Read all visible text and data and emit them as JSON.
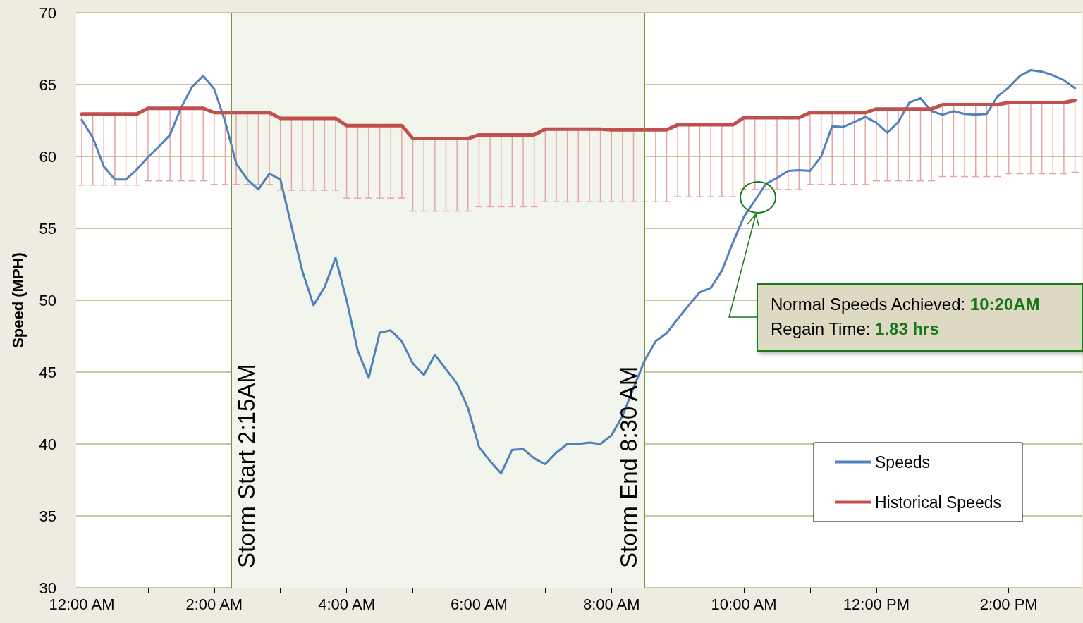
{
  "chart_data": {
    "type": "line",
    "ylabel": "Speed (MPH)",
    "x": [
      0,
      0.167,
      0.333,
      0.5,
      0.667,
      0.833,
      1,
      1.167,
      1.333,
      1.5,
      1.667,
      1.833,
      2,
      2.167,
      2.333,
      2.5,
      2.667,
      2.833,
      3,
      3.167,
      3.333,
      3.5,
      3.667,
      3.833,
      4,
      4.167,
      4.333,
      4.5,
      4.667,
      4.833,
      5,
      5.167,
      5.333,
      5.5,
      5.667,
      5.833,
      6,
      6.167,
      6.333,
      6.5,
      6.667,
      6.833,
      7,
      7.167,
      7.333,
      7.5,
      7.667,
      7.833,
      8,
      8.167,
      8.333,
      8.5,
      8.667,
      8.833,
      9,
      9.167,
      9.333,
      9.5,
      9.667,
      9.833,
      10,
      10.167,
      10.333,
      10.5,
      10.667,
      10.833,
      11,
      11.167,
      11.333,
      11.5,
      11.667,
      11.833,
      12,
      12.167,
      12.333,
      12.5,
      12.667,
      12.833,
      13,
      13.167,
      13.333,
      13.5,
      13.667,
      13.833,
      14,
      14.167,
      14.333,
      14.5,
      14.667,
      14.833,
      15
    ],
    "series": [
      {
        "name": "Speeds",
        "color": "#4f81bd",
        "values": [
          62.55,
          61.3,
          59.3,
          58.4,
          58.4,
          59.1,
          59.95,
          60.7,
          61.5,
          63.4,
          64.85,
          65.6,
          64.7,
          62.4,
          59.5,
          58.4,
          57.7,
          58.8,
          58.4,
          55.15,
          52.0,
          49.65,
          50.9,
          52.95,
          50.0,
          46.5,
          44.6,
          47.75,
          47.9,
          47.15,
          45.6,
          44.8,
          46.2,
          45.2,
          44.2,
          42.5,
          39.8,
          38.8,
          37.95,
          39.6,
          39.65,
          39.0,
          38.6,
          39.4,
          40.0,
          40.0,
          40.1,
          40.0,
          40.6,
          41.95,
          43.9,
          45.8,
          47.15,
          47.7,
          48.7,
          49.65,
          50.55,
          50.85,
          52.05,
          54.0,
          55.8,
          56.95,
          58.1,
          58.5,
          59.0,
          59.05,
          59.0,
          60.0,
          62.1,
          62.05,
          62.4,
          62.75,
          62.35,
          61.65,
          62.4,
          63.75,
          64.05,
          63.15,
          62.9,
          63.15,
          62.95,
          62.9,
          62.95,
          64.2,
          64.8,
          65.6,
          66.0,
          65.9,
          65.65,
          65.3,
          64.75
        ]
      },
      {
        "name": "Historical Speeds",
        "color": "#c0504d",
        "values": [
          62.95,
          62.95,
          62.95,
          62.95,
          62.95,
          62.95,
          63.35,
          63.35,
          63.35,
          63.35,
          63.35,
          63.35,
          63.05,
          63.05,
          63.05,
          63.05,
          63.05,
          63.05,
          62.65,
          62.65,
          62.65,
          62.65,
          62.65,
          62.65,
          62.15,
          62.15,
          62.15,
          62.15,
          62.15,
          62.15,
          61.25,
          61.25,
          61.25,
          61.25,
          61.25,
          61.25,
          61.5,
          61.5,
          61.5,
          61.5,
          61.5,
          61.5,
          61.9,
          61.9,
          61.9,
          61.9,
          61.9,
          61.9,
          61.85,
          61.85,
          61.85,
          61.85,
          61.85,
          61.85,
          62.2,
          62.2,
          62.2,
          62.2,
          62.2,
          62.2,
          62.7,
          62.7,
          62.7,
          62.7,
          62.7,
          62.7,
          63.05,
          63.05,
          63.05,
          63.05,
          63.05,
          63.05,
          63.3,
          63.3,
          63.3,
          63.3,
          63.3,
          63.3,
          63.6,
          63.6,
          63.6,
          63.6,
          63.6,
          63.6,
          63.75,
          63.75,
          63.75,
          63.75,
          63.75,
          63.75,
          63.9
        ],
        "errors": [
          [
            58.0,
            62.95
          ],
          [
            58.0,
            62.95
          ],
          [
            58.0,
            62.95
          ],
          [
            58.0,
            62.95
          ],
          [
            58.0,
            62.95
          ],
          [
            58.0,
            62.95
          ],
          [
            58.3,
            63.35
          ],
          [
            58.3,
            63.35
          ],
          [
            58.3,
            63.35
          ],
          [
            58.3,
            63.35
          ],
          [
            58.3,
            63.35
          ],
          [
            58.3,
            63.35
          ],
          [
            58.05,
            63.05
          ],
          [
            58.05,
            63.05
          ],
          [
            58.05,
            63.05
          ],
          [
            58.05,
            63.05
          ],
          [
            58.05,
            63.05
          ],
          [
            58.05,
            63.05
          ],
          [
            57.65,
            62.65
          ],
          [
            57.65,
            62.65
          ],
          [
            57.65,
            62.65
          ],
          [
            57.65,
            62.65
          ],
          [
            57.65,
            62.65
          ],
          [
            57.65,
            62.65
          ],
          [
            57.1,
            62.15
          ],
          [
            57.1,
            62.15
          ],
          [
            57.1,
            62.15
          ],
          [
            57.1,
            62.15
          ],
          [
            57.1,
            62.15
          ],
          [
            57.1,
            62.15
          ],
          [
            56.2,
            61.25
          ],
          [
            56.2,
            61.25
          ],
          [
            56.2,
            61.25
          ],
          [
            56.2,
            61.25
          ],
          [
            56.2,
            61.25
          ],
          [
            56.2,
            61.25
          ],
          [
            56.5,
            61.5
          ],
          [
            56.5,
            61.5
          ],
          [
            56.5,
            61.5
          ],
          [
            56.5,
            61.5
          ],
          [
            56.5,
            61.5
          ],
          [
            56.5,
            61.5
          ],
          [
            56.85,
            61.9
          ],
          [
            56.85,
            61.9
          ],
          [
            56.85,
            61.9
          ],
          [
            56.85,
            61.9
          ],
          [
            56.85,
            61.9
          ],
          [
            56.85,
            61.9
          ],
          [
            56.85,
            61.85
          ],
          [
            56.85,
            61.85
          ],
          [
            56.85,
            61.85
          ],
          [
            56.85,
            61.85
          ],
          [
            56.85,
            61.85
          ],
          [
            56.85,
            61.85
          ],
          [
            57.2,
            62.2
          ],
          [
            57.2,
            62.2
          ],
          [
            57.2,
            62.2
          ],
          [
            57.2,
            62.2
          ],
          [
            57.2,
            62.2
          ],
          [
            57.2,
            62.2
          ],
          [
            57.7,
            62.7
          ],
          [
            57.7,
            62.7
          ],
          [
            57.7,
            62.7
          ],
          [
            57.7,
            62.7
          ],
          [
            57.7,
            62.7
          ],
          [
            57.7,
            62.7
          ],
          [
            58.05,
            63.05
          ],
          [
            58.05,
            63.05
          ],
          [
            58.05,
            63.05
          ],
          [
            58.05,
            63.05
          ],
          [
            58.05,
            63.05
          ],
          [
            58.05,
            63.05
          ],
          [
            58.3,
            63.3
          ],
          [
            58.3,
            63.3
          ],
          [
            58.3,
            63.3
          ],
          [
            58.3,
            63.3
          ],
          [
            58.3,
            63.3
          ],
          [
            58.3,
            63.3
          ],
          [
            58.6,
            63.6
          ],
          [
            58.6,
            63.6
          ],
          [
            58.6,
            63.6
          ],
          [
            58.6,
            63.6
          ],
          [
            58.6,
            63.6
          ],
          [
            58.6,
            63.6
          ],
          [
            58.8,
            63.75
          ],
          [
            58.8,
            63.75
          ],
          [
            58.8,
            63.75
          ],
          [
            58.8,
            63.75
          ],
          [
            58.8,
            63.75
          ],
          [
            58.8,
            63.75
          ],
          [
            58.9,
            63.9
          ]
        ]
      }
    ],
    "xlim": [
      -0.085,
      15.1
    ],
    "xticks": [
      {
        "value": 0,
        "label": "12:00 AM"
      },
      {
        "value": 1,
        "label": null
      },
      {
        "value": 2,
        "label": "2:00 AM"
      },
      {
        "value": 3,
        "label": null
      },
      {
        "value": 4,
        "label": "4:00 AM"
      },
      {
        "value": 5,
        "label": null
      },
      {
        "value": 6,
        "label": "6:00 AM"
      },
      {
        "value": 7,
        "label": null
      },
      {
        "value": 8,
        "label": "8:00 AM"
      },
      {
        "value": 9,
        "label": null
      },
      {
        "value": 10,
        "label": "10:00 AM"
      },
      {
        "value": 11,
        "label": null
      },
      {
        "value": 12,
        "label": "12:00 PM"
      },
      {
        "value": 13,
        "label": null
      },
      {
        "value": 14,
        "label": "2:00 PM"
      },
      {
        "value": 15,
        "label": null
      }
    ],
    "ylim": [
      30,
      70
    ],
    "yticks": [
      30,
      35,
      40,
      45,
      50,
      55,
      60,
      65,
      70
    ],
    "grid": "y",
    "legend": "bottom right",
    "marker": "none",
    "line_style": "solid",
    "bands": [
      {
        "axis": "x",
        "from": 2.25,
        "to": 8.5,
        "color": "#f2f5ec"
      }
    ],
    "ref_lines": [
      {
        "axis": "x",
        "value": 2.25,
        "label": "Storm Start 2:15AM",
        "color": "#77933c"
      },
      {
        "axis": "x",
        "value": 8.5,
        "label": "Storm End 8:30 AM",
        "color": "#77933c"
      }
    ],
    "annotations": [
      "Normal Speeds Achieved: 10:20AM",
      "Regain Time: 1.83 hrs"
    ]
  }
}
